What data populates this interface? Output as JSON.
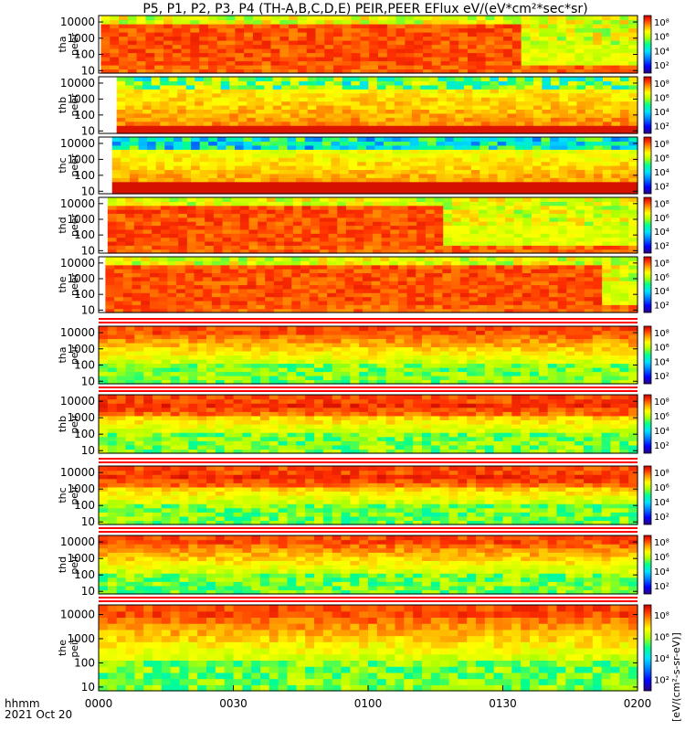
{
  "chart_data": {
    "type": "heatmap",
    "title": "P5, P1, P2, P3, P4 (TH-A,B,C,D,E) PEIR,PEER EFlux eV/(eV*cm²*sec*sr)",
    "x_tick_labels": [
      "0000",
      "0030",
      "0100",
      "0130",
      "0200"
    ],
    "x_axis_label": "hhmm",
    "date_label": "2021 Oct 20",
    "x_range_minutes": [
      0,
      120
    ],
    "y_scale": "log",
    "y_tick_labels": [
      "10",
      "100",
      "1000",
      "10000"
    ],
    "y_range_eV": [
      7,
      25000
    ],
    "colorbar_scale": "log",
    "colorbar_ticks": [
      "10²",
      "10⁴",
      "10⁶",
      "10⁸"
    ],
    "colorbar_label": "[eV/(cm²-s-sr-eV)]",
    "colorscale": [
      "#2a0080",
      "#0000ff",
      "#0080ff",
      "#00e0ff",
      "#00ff90",
      "#b0ff00",
      "#ffff00",
      "#ffa000",
      "#ff3000",
      "#c00000"
    ],
    "panels": [
      {
        "label_line1": "tha",
        "label_line2": "peer",
        "group": "PEER",
        "probe": "TH-A",
        "data_start_minute": 0.5
      },
      {
        "label_line1": "thb",
        "label_line2": "peer",
        "group": "PEER",
        "probe": "TH-B",
        "data_start_minute": 4
      },
      {
        "label_line1": "thc",
        "label_line2": "peer",
        "group": "PEER",
        "probe": "TH-C",
        "data_start_minute": 3
      },
      {
        "label_line1": "thd",
        "label_line2": "peer",
        "group": "PEER",
        "probe": "TH-D",
        "data_start_minute": 2
      },
      {
        "label_line1": "the",
        "label_line2": "peer",
        "group": "PEER",
        "probe": "TH-E",
        "data_start_minute": 1.5
      },
      {
        "label_line1": "tha",
        "label_line2": "peir",
        "group": "PEIR",
        "probe": "TH-A",
        "data_start_minute": 0
      },
      {
        "label_line1": "thb",
        "label_line2": "peir",
        "group": "PEIR",
        "probe": "TH-B",
        "data_start_minute": 0
      },
      {
        "label_line1": "thc",
        "label_line2": "peir",
        "group": "PEIR",
        "probe": "TH-C",
        "data_start_minute": 0
      },
      {
        "label_line1": "thd",
        "label_line2": "peir",
        "group": "PEIR",
        "probe": "TH-D",
        "data_start_minute": 0
      },
      {
        "label_line1": "the",
        "label_line2": "peir",
        "group": "PEIR",
        "probe": "TH-E",
        "data_start_minute": 0
      }
    ]
  }
}
